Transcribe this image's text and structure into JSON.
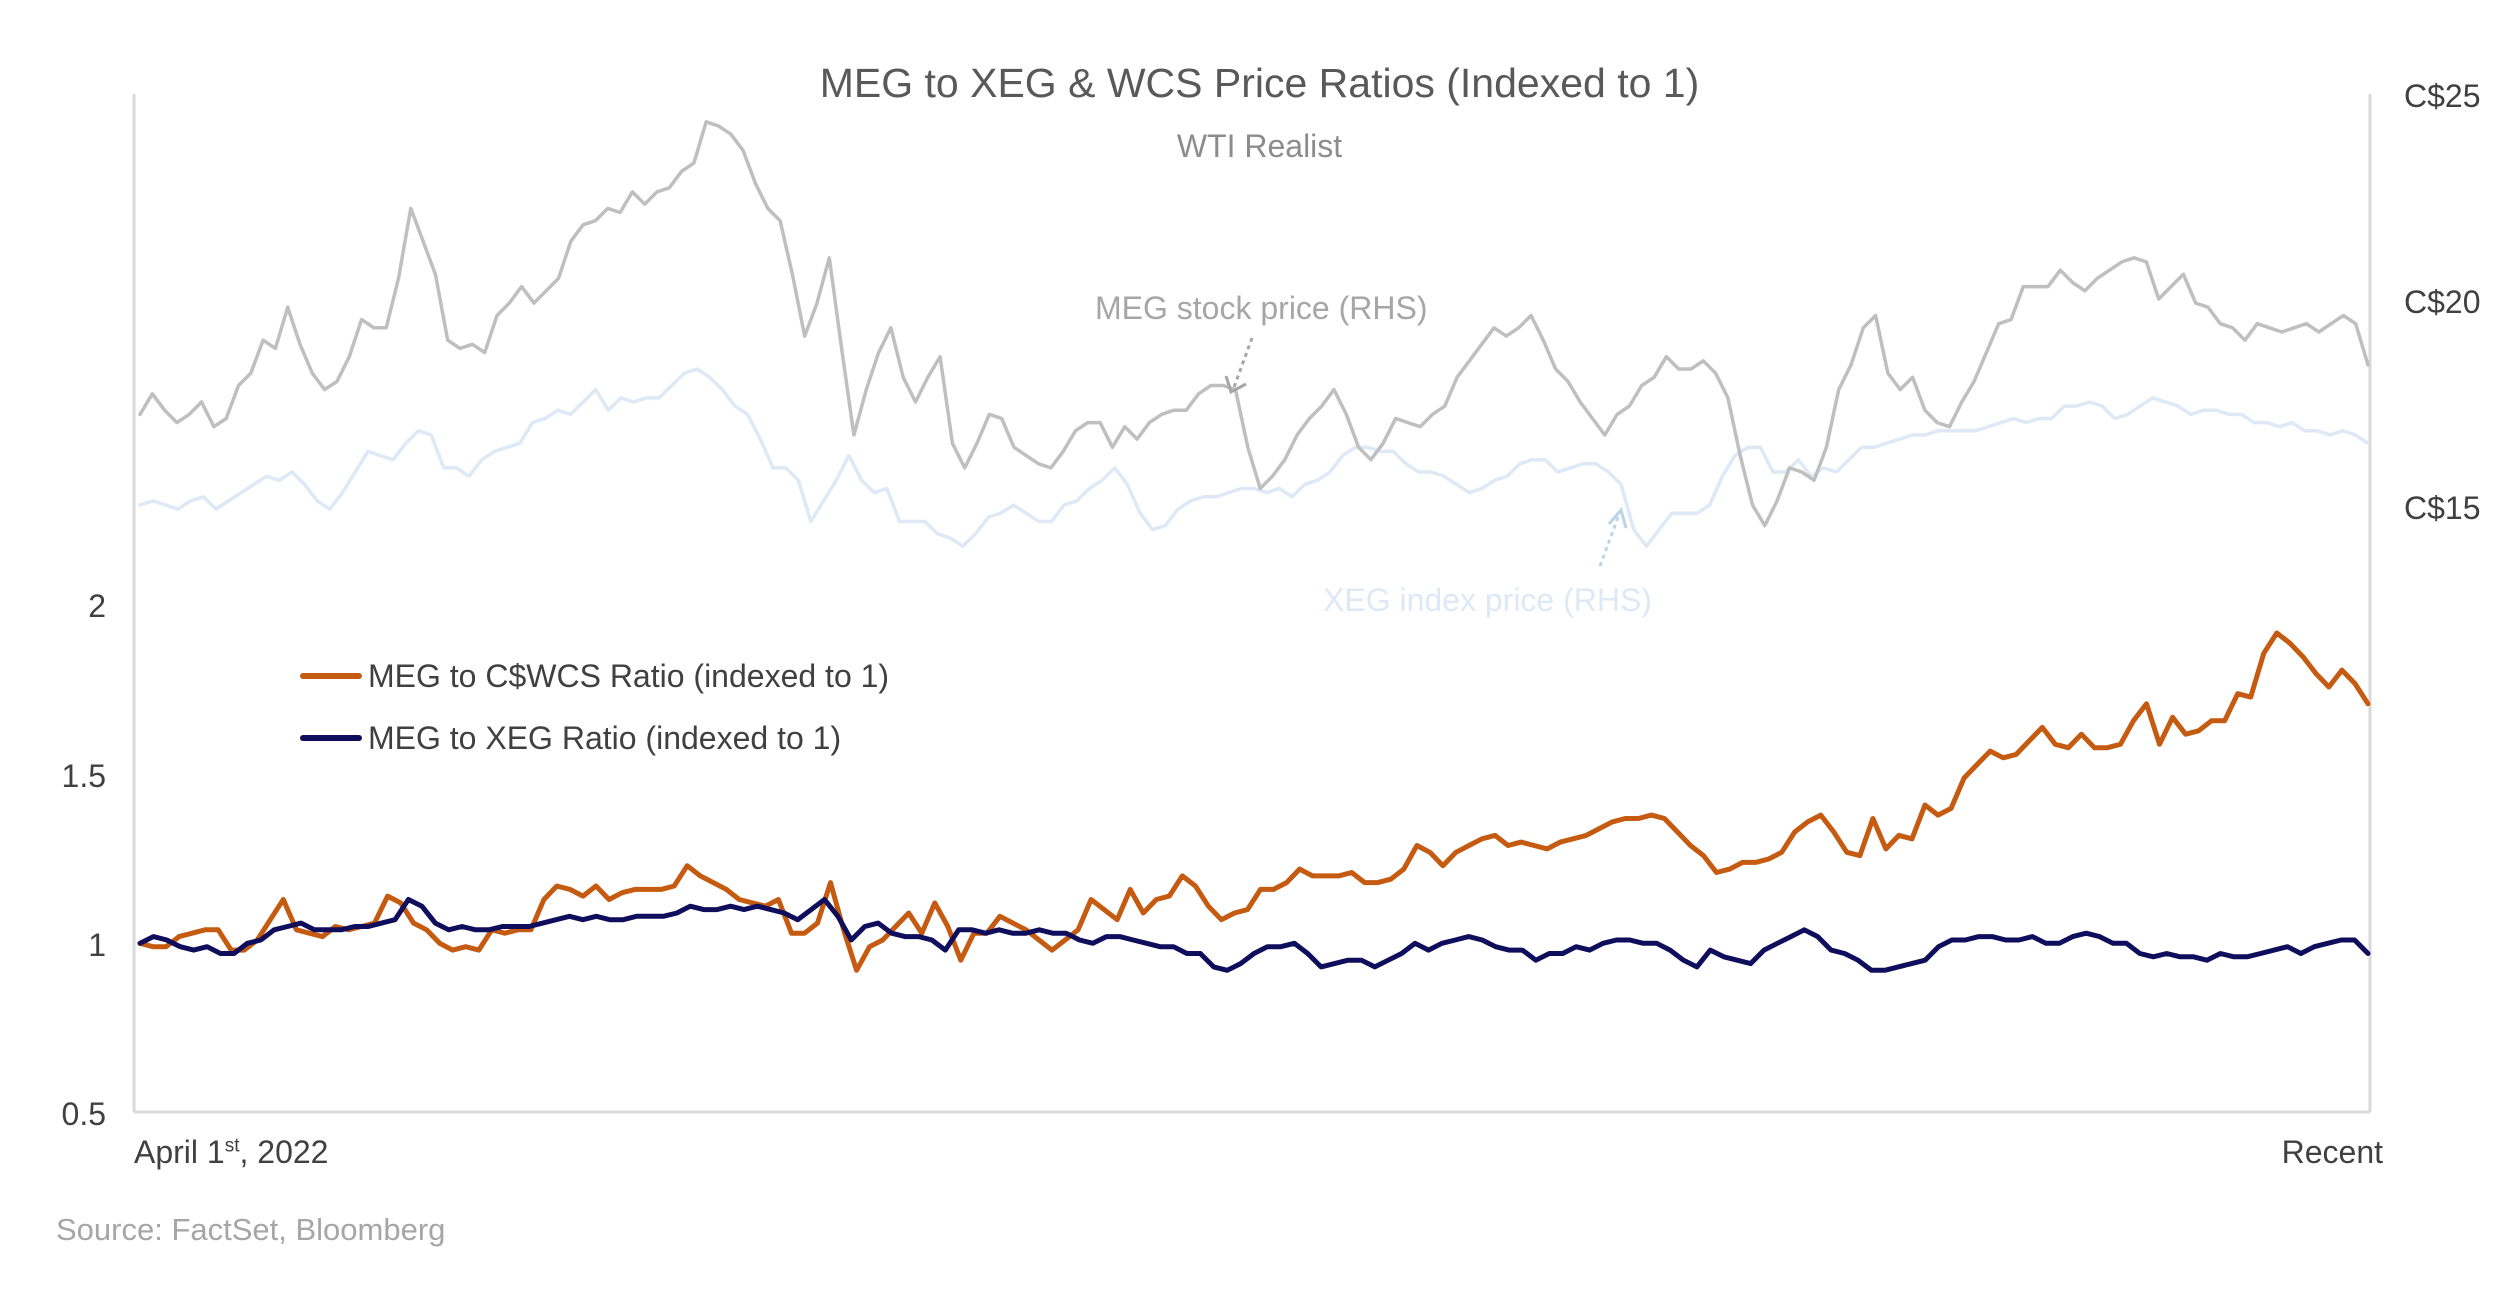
{
  "chart_data": {
    "type": "line",
    "title": "MEG to XEG & WCS Price Ratios (Indexed to 1)",
    "subtitle": "WTI Realist",
    "source": "Source: FactSet, Bloomberg",
    "x_start_label": "April 1",
    "x_start_sup": "st",
    "x_start_year": ", 2022",
    "x_end_label": "Recent",
    "y_left": {
      "ticks": [
        "2",
        "1.5",
        "1",
        "0.5"
      ],
      "ylim": [
        0.5,
        2.0
      ]
    },
    "y_right": {
      "ticks": [
        "C$25",
        "C$20",
        "C$15"
      ],
      "ylim": [
        10,
        25
      ]
    },
    "grid": false,
    "legend_placement": "center-left",
    "annotations": {
      "meg_stock": "MEG stock price (RHS)",
      "xeg_index": "XEG index price (RHS)"
    },
    "colors": {
      "wcs_ratio": "#c55a11",
      "xeg_ratio": "#0e0e5c",
      "meg_price": "#bfbfbf",
      "xeg_price": "#dde9f5",
      "axis": "#d9d9d9"
    },
    "series": [
      {
        "name": "MEG to C$WCS Ratio (indexed to 1)",
        "axis": "left",
        "color": "#c55a11",
        "values": [
          1.0,
          0.99,
          0.99,
          1.02,
          1.03,
          1.04,
          1.04,
          0.98,
          0.98,
          1.01,
          1.07,
          1.13,
          1.04,
          1.03,
          1.02,
          1.05,
          1.04,
          1.05,
          1.06,
          1.14,
          1.12,
          1.06,
          1.04,
          1.0,
          0.98,
          0.99,
          0.98,
          1.04,
          1.03,
          1.04,
          1.04,
          1.13,
          1.17,
          1.16,
          1.14,
          1.17,
          1.13,
          1.15,
          1.16,
          1.16,
          1.16,
          1.17,
          1.23,
          1.2,
          1.18,
          1.16,
          1.13,
          1.12,
          1.11,
          1.13,
          1.03,
          1.03,
          1.06,
          1.18,
          1.04,
          0.92,
          0.99,
          1.01,
          1.05,
          1.09,
          1.03,
          1.12,
          1.05,
          0.95,
          1.03,
          1.03,
          1.08,
          1.06,
          1.04,
          1.01,
          0.98,
          1.01,
          1.04,
          1.13,
          1.1,
          1.07,
          1.16,
          1.09,
          1.13,
          1.14,
          1.2,
          1.17,
          1.11,
          1.07,
          1.09,
          1.1,
          1.16,
          1.16,
          1.18,
          1.22,
          1.2,
          1.2,
          1.2,
          1.21,
          1.18,
          1.18,
          1.19,
          1.22,
          1.29,
          1.27,
          1.23,
          1.27,
          1.29,
          1.31,
          1.32,
          1.29,
          1.3,
          1.29,
          1.28,
          1.3,
          1.31,
          1.32,
          1.34,
          1.36,
          1.37,
          1.37,
          1.38,
          1.37,
          1.33,
          1.29,
          1.26,
          1.21,
          1.22,
          1.24,
          1.24,
          1.25,
          1.27,
          1.33,
          1.36,
          1.38,
          1.33,
          1.27,
          1.26,
          1.37,
          1.28,
          1.32,
          1.31,
          1.41,
          1.38,
          1.4,
          1.49,
          1.53,
          1.57,
          1.55,
          1.56,
          1.6,
          1.64,
          1.59,
          1.58,
          1.62,
          1.58,
          1.58,
          1.59,
          1.66,
          1.71,
          1.59,
          1.67,
          1.62,
          1.63,
          1.66,
          1.66,
          1.74,
          1.73,
          1.86,
          1.92,
          1.89,
          1.85,
          1.8,
          1.76,
          1.81,
          1.77,
          1.71
        ]
      },
      {
        "name": "MEG to XEG Ratio (indexed to 1)",
        "axis": "left",
        "color": "#0e0e5c",
        "values": [
          1.0,
          1.02,
          1.01,
          0.99,
          0.98,
          0.99,
          0.97,
          0.97,
          1.0,
          1.01,
          1.04,
          1.05,
          1.06,
          1.04,
          1.04,
          1.04,
          1.05,
          1.05,
          1.06,
          1.07,
          1.13,
          1.11,
          1.06,
          1.04,
          1.05,
          1.04,
          1.04,
          1.05,
          1.05,
          1.05,
          1.06,
          1.07,
          1.08,
          1.07,
          1.08,
          1.07,
          1.07,
          1.08,
          1.08,
          1.08,
          1.09,
          1.11,
          1.1,
          1.1,
          1.11,
          1.1,
          1.11,
          1.1,
          1.09,
          1.07,
          1.1,
          1.13,
          1.08,
          1.01,
          1.05,
          1.06,
          1.03,
          1.02,
          1.02,
          1.01,
          0.98,
          1.04,
          1.04,
          1.03,
          1.04,
          1.03,
          1.03,
          1.04,
          1.03,
          1.03,
          1.01,
          1.0,
          1.02,
          1.02,
          1.01,
          1.0,
          0.99,
          0.99,
          0.97,
          0.97,
          0.93,
          0.92,
          0.94,
          0.97,
          0.99,
          0.99,
          1.0,
          0.97,
          0.93,
          0.94,
          0.95,
          0.95,
          0.93,
          0.95,
          0.97,
          1.0,
          0.98,
          1.0,
          1.01,
          1.02,
          1.01,
          0.99,
          0.98,
          0.98,
          0.95,
          0.97,
          0.97,
          0.99,
          0.98,
          1.0,
          1.01,
          1.01,
          1.0,
          1.0,
          0.98,
          0.95,
          0.93,
          0.98,
          0.96,
          0.95,
          0.94,
          0.98,
          1.0,
          1.02,
          1.04,
          1.02,
          0.98,
          0.97,
          0.95,
          0.92,
          0.92,
          0.93,
          0.94,
          0.95,
          0.99,
          1.01,
          1.01,
          1.02,
          1.02,
          1.01,
          1.01,
          1.02,
          1.0,
          1.0,
          1.02,
          1.03,
          1.02,
          1.0,
          1.0,
          0.97,
          0.96,
          0.97,
          0.96,
          0.96,
          0.95,
          0.97,
          0.96,
          0.96,
          0.97,
          0.98,
          0.99,
          0.97,
          0.99,
          1.0,
          1.01,
          1.01,
          0.97
        ]
      },
      {
        "name": "MEG stock price (RHS)",
        "axis": "right",
        "color": "#bfbfbf",
        "values": [
          17.2,
          17.7,
          17.3,
          17.0,
          17.2,
          17.5,
          16.9,
          17.1,
          17.9,
          18.2,
          19.0,
          18.8,
          19.8,
          18.9,
          18.2,
          17.8,
          18.0,
          18.6,
          19.5,
          19.3,
          19.3,
          20.5,
          22.2,
          21.4,
          20.6,
          19.0,
          18.8,
          18.9,
          18.7,
          19.6,
          19.9,
          20.3,
          19.9,
          20.2,
          20.5,
          21.4,
          21.8,
          21.9,
          22.2,
          22.1,
          22.6,
          22.3,
          22.6,
          22.7,
          23.1,
          23.3,
          24.3,
          24.2,
          24.0,
          23.6,
          22.8,
          22.2,
          21.9,
          20.6,
          19.1,
          19.9,
          21.0,
          18.8,
          16.7,
          17.8,
          18.7,
          19.3,
          18.1,
          17.5,
          18.1,
          18.6,
          16.5,
          15.9,
          16.5,
          17.2,
          17.1,
          16.4,
          16.2,
          16.0,
          15.9,
          16.3,
          16.8,
          17.0,
          17.0,
          16.4,
          16.9,
          16.6,
          17.0,
          17.2,
          17.3,
          17.3,
          17.7,
          17.9,
          17.9,
          17.8,
          16.4,
          15.4,
          15.7,
          16.1,
          16.7,
          17.1,
          17.4,
          17.8,
          17.2,
          16.4,
          16.1,
          16.5,
          17.1,
          17.0,
          16.9,
          17.2,
          17.4,
          18.1,
          18.5,
          18.9,
          19.3,
          19.1,
          19.3,
          19.6,
          19.0,
          18.3,
          18.0,
          17.5,
          17.1,
          16.7,
          17.2,
          17.4,
          17.9,
          18.1,
          18.6,
          18.3,
          18.3,
          18.5,
          18.2,
          17.6,
          16.2,
          15.0,
          14.5,
          15.1,
          15.9,
          15.8,
          15.6,
          16.4,
          17.8,
          18.4,
          19.3,
          19.6,
          18.2,
          17.8,
          18.1,
          17.3,
          17.0,
          16.9,
          17.5,
          18.0,
          18.7,
          19.4,
          19.5,
          20.3,
          20.3,
          20.3,
          20.7,
          20.4,
          20.2,
          20.5,
          20.7,
          20.9,
          21.0,
          20.9,
          20.0,
          20.3,
          20.6,
          19.9,
          19.8,
          19.4,
          19.3,
          19.0,
          19.4,
          19.3,
          19.2,
          19.3,
          19.4,
          19.2,
          19.4,
          19.6,
          19.4,
          18.4
        ]
      },
      {
        "name": "XEG index price (RHS)",
        "axis": "right",
        "color": "#dde9f5",
        "values": [
          15.0,
          15.1,
          15.0,
          14.9,
          15.1,
          15.2,
          14.9,
          15.1,
          15.3,
          15.5,
          15.7,
          15.6,
          15.8,
          15.5,
          15.1,
          14.9,
          15.3,
          15.8,
          16.3,
          16.2,
          16.1,
          16.5,
          16.8,
          16.7,
          15.9,
          15.9,
          15.7,
          16.1,
          16.3,
          16.4,
          16.5,
          17.0,
          17.1,
          17.3,
          17.2,
          17.5,
          17.8,
          17.3,
          17.6,
          17.5,
          17.6,
          17.6,
          17.9,
          18.2,
          18.3,
          18.1,
          17.8,
          17.4,
          17.2,
          16.6,
          15.9,
          15.9,
          15.6,
          14.6,
          15.1,
          15.6,
          16.2,
          15.6,
          15.3,
          15.4,
          14.6,
          14.6,
          14.6,
          14.3,
          14.2,
          14.0,
          14.3,
          14.7,
          14.8,
          15.0,
          14.8,
          14.6,
          14.6,
          15.0,
          15.1,
          15.4,
          15.6,
          15.9,
          15.5,
          14.8,
          14.4,
          14.5,
          14.9,
          15.1,
          15.2,
          15.2,
          15.3,
          15.4,
          15.4,
          15.3,
          15.4,
          15.2,
          15.5,
          15.6,
          15.8,
          16.2,
          16.4,
          16.4,
          16.3,
          16.3,
          16.0,
          15.8,
          15.8,
          15.7,
          15.5,
          15.3,
          15.4,
          15.6,
          15.7,
          16.0,
          16.1,
          16.1,
          15.8,
          15.9,
          16.0,
          16.0,
          15.8,
          15.5,
          14.4,
          14.0,
          14.4,
          14.8,
          14.8,
          14.8,
          15.0,
          15.7,
          16.2,
          16.4,
          16.4,
          15.8,
          15.8,
          16.1,
          15.7,
          15.9,
          15.8,
          16.1,
          16.4,
          16.4,
          16.5,
          16.6,
          16.7,
          16.7,
          16.8,
          16.8,
          16.8,
          16.8,
          16.9,
          17.0,
          17.1,
          17.0,
          17.1,
          17.1,
          17.4,
          17.4,
          17.5,
          17.4,
          17.1,
          17.2,
          17.4,
          17.6,
          17.5,
          17.4,
          17.2,
          17.3,
          17.3,
          17.2,
          17.2,
          17.0,
          17.0,
          16.9,
          17.0,
          16.8,
          16.8,
          16.7,
          16.8,
          16.7,
          16.5
        ]
      }
    ]
  }
}
